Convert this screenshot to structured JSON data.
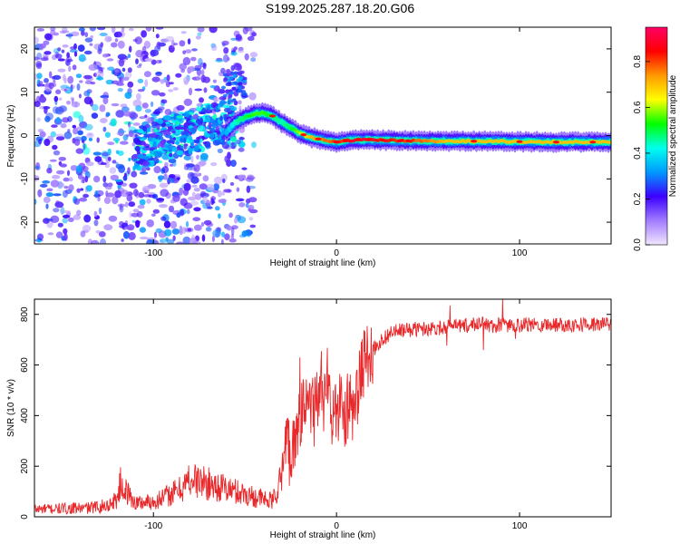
{
  "title": "S199.2025.287.18.20.G06",
  "chart_data": [
    {
      "type": "heatmap",
      "xlabel": "Height of straight line (km)",
      "ylabel": "Frequency (Hz)",
      "xlim": [
        -165,
        150
      ],
      "ylim": [
        -25,
        25
      ],
      "xticks": [
        -100,
        0,
        100
      ],
      "xtick_labels": [
        "-100",
        "0",
        "100"
      ],
      "yticks": [
        -20,
        -10,
        0,
        10,
        20
      ],
      "ytick_labels": [
        "-20",
        "-10",
        "0",
        "10",
        "20"
      ],
      "colorbar": {
        "label": "Normalized spectral amplitude",
        "range": [
          0,
          0.95
        ],
        "ticks": [
          0.0,
          0.2,
          0.4,
          0.6,
          0.8
        ],
        "tick_labels": [
          "0.0",
          "0.2",
          "0.4",
          "0.6",
          "0.8"
        ],
        "colors": [
          "#f2e6ff",
          "#a27cff",
          "#3b00ff",
          "#0099ff",
          "#00ffee",
          "#00ff00",
          "#ffff00",
          "#ff9900",
          "#ff0000",
          "#ff0066"
        ]
      },
      "ridge": {
        "x": [
          -60,
          -55,
          -50,
          -45,
          -40,
          -35,
          -30,
          -25,
          -20,
          -15,
          -10,
          -5,
          0,
          10,
          20,
          40,
          60,
          80,
          100,
          120,
          150
        ],
        "frequency": [
          1.0,
          3.0,
          4.2,
          5.0,
          5.2,
          4.5,
          3.0,
          1.8,
          0.5,
          -0.3,
          -0.8,
          -1.2,
          -1.5,
          -1.0,
          -1.0,
          -1.2,
          -1.3,
          -1.3,
          -1.4,
          -1.5,
          -1.5
        ],
        "amplitude": [
          0.35,
          0.45,
          0.5,
          0.55,
          0.55,
          0.5,
          0.45,
          0.5,
          0.6,
          0.7,
          0.75,
          0.8,
          0.85,
          0.9,
          0.9,
          0.85,
          0.7,
          0.7,
          0.7,
          0.7,
          0.7
        ]
      },
      "grid": false
    },
    {
      "type": "line",
      "xlabel": "Height of straight line (km)",
      "ylabel": "SNR (10 * v/v)",
      "xlim": [
        -165,
        150
      ],
      "ylim": [
        0,
        860
      ],
      "xticks": [
        -100,
        0,
        100
      ],
      "xtick_labels": [
        "-100",
        "0",
        "100"
      ],
      "yticks": [
        0,
        200,
        400,
        600,
        800
      ],
      "ytick_labels": [
        "0",
        "200",
        "400",
        "600",
        "800"
      ],
      "line_color": "#e8282a",
      "x": [
        -165,
        -150,
        -135,
        -125,
        -120,
        -118,
        -110,
        -100,
        -95,
        -90,
        -85,
        -80,
        -75,
        -70,
        -65,
        -60,
        -55,
        -50,
        -45,
        -40,
        -35,
        -30,
        -28,
        -25,
        -22,
        -20,
        -17,
        -15,
        -12,
        -10,
        -7,
        -5,
        -3,
        0,
        2,
        5,
        8,
        10,
        12,
        15,
        17,
        20,
        25,
        30,
        40,
        50,
        60,
        70,
        75,
        80,
        82,
        85,
        90,
        100,
        110,
        120,
        130,
        140,
        150
      ],
      "values": [
        30,
        32,
        35,
        45,
        70,
        130,
        55,
        60,
        75,
        90,
        110,
        150,
        140,
        130,
        120,
        110,
        100,
        90,
        80,
        70,
        60,
        150,
        300,
        260,
        350,
        420,
        380,
        450,
        420,
        500,
        420,
        560,
        430,
        380,
        460,
        420,
        470,
        360,
        520,
        600,
        640,
        660,
        700,
        730,
        740,
        745,
        750,
        755,
        760,
        770,
        760,
        750,
        760,
        755,
        760,
        760,
        760,
        760,
        760
      ],
      "grid": false
    }
  ]
}
